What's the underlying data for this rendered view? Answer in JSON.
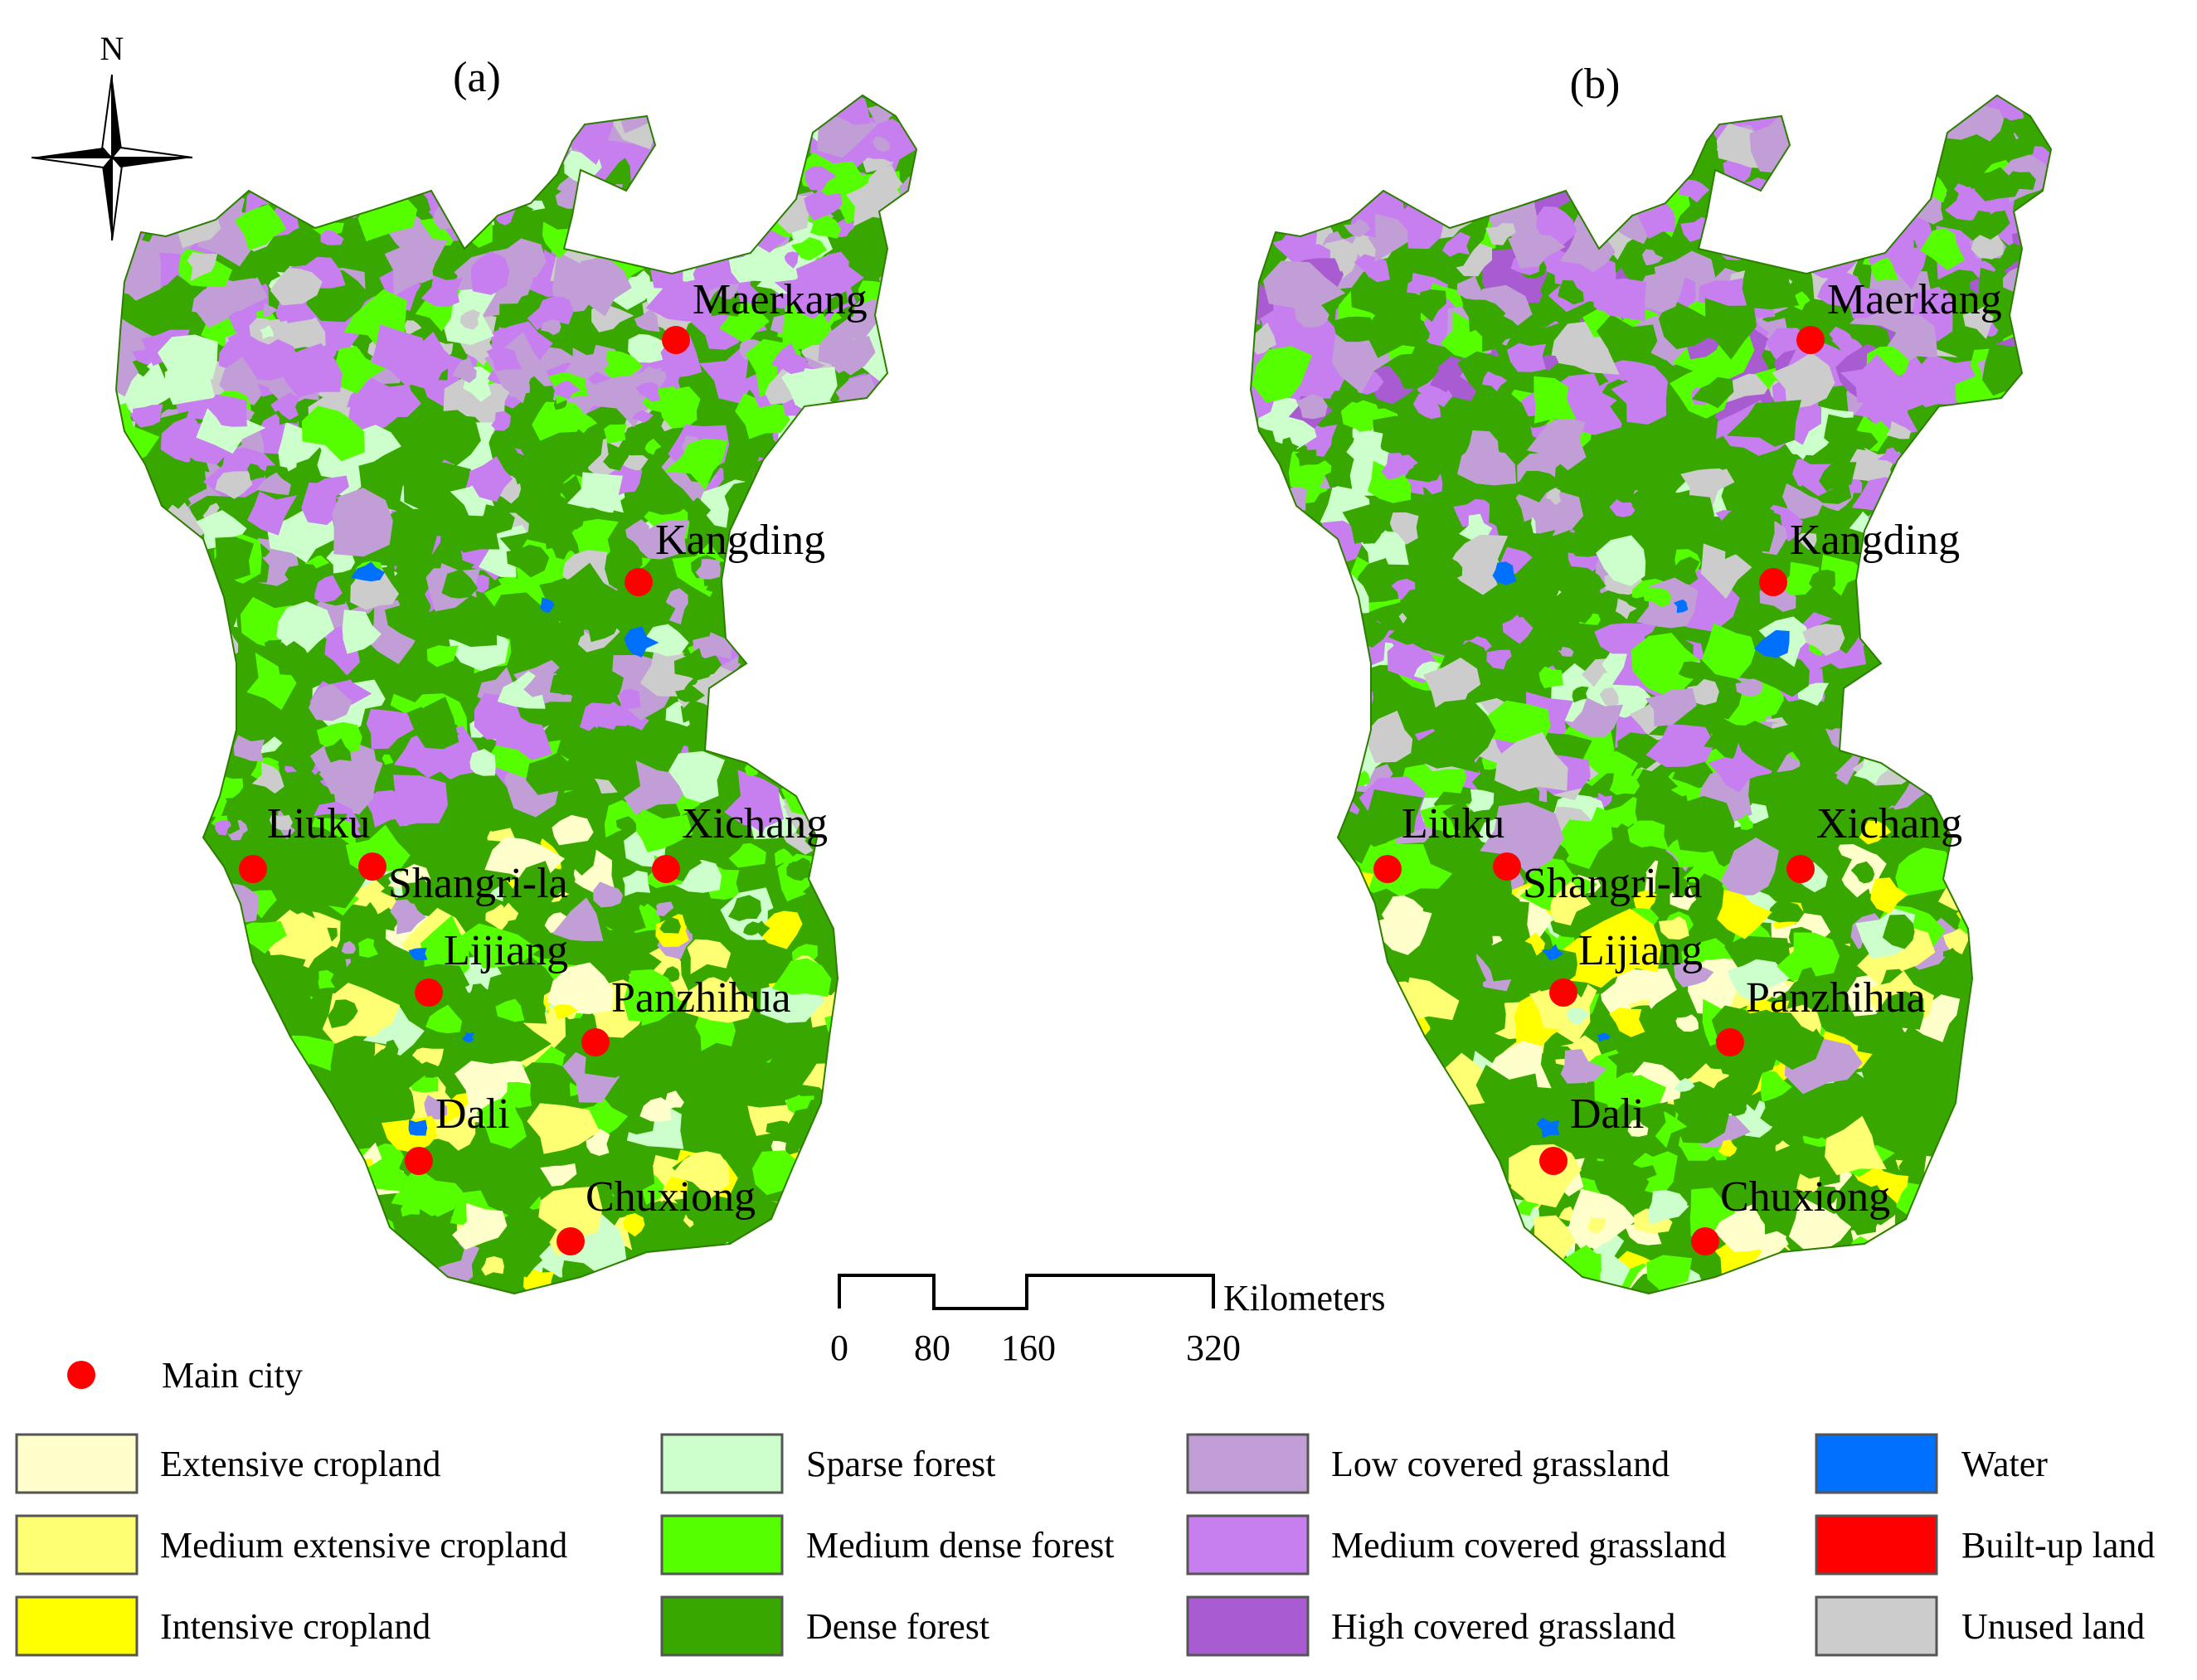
{
  "panels": [
    {
      "label": "(a)",
      "cities": [
        {
          "name": "Maerkang"
        },
        {
          "name": "Kangding"
        },
        {
          "name": "Xichang"
        },
        {
          "name": "Liuku"
        },
        {
          "name": "Shangri-la"
        },
        {
          "name": "Lijiang"
        },
        {
          "name": "Panzhihua"
        },
        {
          "name": "Dali"
        },
        {
          "name": "Chuxiong"
        }
      ]
    },
    {
      "label": "(b)",
      "cities": [
        {
          "name": "Maerkang"
        },
        {
          "name": "Kangding"
        },
        {
          "name": "Xichang"
        },
        {
          "name": "Liuku"
        },
        {
          "name": "Shangri-la"
        },
        {
          "name": "Lijiang"
        },
        {
          "name": "Panzhihua"
        },
        {
          "name": "Dali"
        },
        {
          "name": "Chuxiong"
        }
      ]
    }
  ],
  "north_arrow": {
    "label": "N"
  },
  "scale_bar": {
    "unit": "Kilometers",
    "ticks": [
      "0",
      "80",
      "160",
      "320"
    ]
  },
  "legend": {
    "main_city": {
      "label": "Main city",
      "color": "#ff0000"
    },
    "classes": [
      {
        "label": "Extensive cropland",
        "color": "#ffffcc"
      },
      {
        "label": "Medium extensive cropland",
        "color": "#ffff73"
      },
      {
        "label": "Intensive cropland",
        "color": "#ffff00"
      },
      {
        "label": "Sparse forest",
        "color": "#ccffcc"
      },
      {
        "label": "Medium dense forest",
        "color": "#55ff00"
      },
      {
        "label": "Dense forest",
        "color": "#38a800"
      },
      {
        "label": "Low covered grassland",
        "color": "#c29ed7"
      },
      {
        "label": "Medium covered grassland",
        "color": "#c77ff0"
      },
      {
        "label": "High covered grassland",
        "color": "#a95cd1"
      },
      {
        "label": "Water",
        "color": "#0070ff"
      },
      {
        "label": "Built-up land",
        "color": "#ff0000"
      },
      {
        "label": "Unused land",
        "color": "#cccccc"
      }
    ]
  }
}
